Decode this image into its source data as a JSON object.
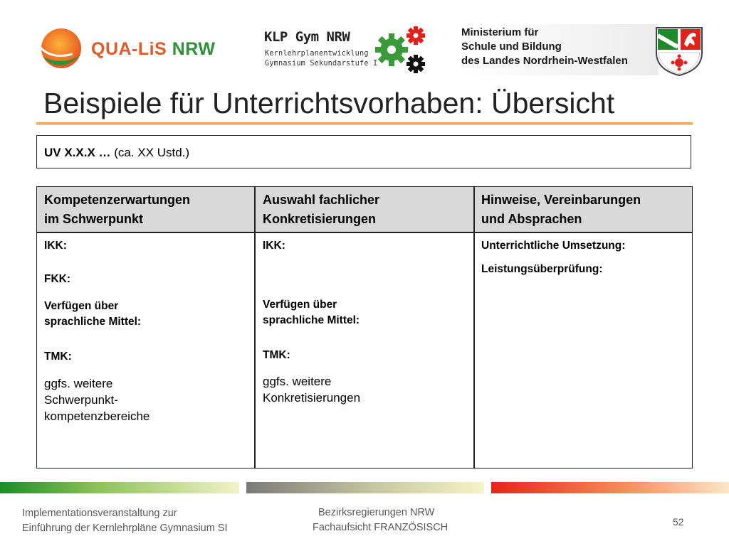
{
  "logos": {
    "qualis": {
      "part1": "QUA-LiS",
      "part2": "NRW"
    },
    "klp": {
      "title": "KLP Gym NRW",
      "sub1": "Kernlehrplanentwicklung",
      "sub2": "Gymnasium Sekundarstufe I"
    },
    "ministry": [
      "Ministerium für",
      "Schule und Bildung",
      "des Landes Nordrhein-Westfalen"
    ]
  },
  "title": "Beispiele für Unterrichtsvorhaben: Übersicht",
  "uv": {
    "bold": "UV X.X.X …",
    "rest": " (ca. XX Ustd.)"
  },
  "table": {
    "headers": [
      [
        "Kompetenzerwartungen",
        "im Schwerpunkt"
      ],
      [
        "Auswahl fachlicher",
        "Konkretisierungen"
      ],
      [
        "Hinweise, Vereinbarungen",
        "und Absprachen"
      ]
    ],
    "col1": {
      "ikk": "IKK:",
      "fkk": "FKK:",
      "verf1": "Verfügen über",
      "verf2": "sprachliche Mittel:",
      "tmk": "TMK:",
      "ggfs1": "ggfs. weitere",
      "ggfs2": "Schwerpunkt-",
      "ggfs3": "kompetenzbereiche"
    },
    "col2": {
      "ikk": "IKK:",
      "verf1": "Verfügen über",
      "verf2": "sprachliche Mittel:",
      "tmk": "TMK:",
      "ggfs1": "ggfs. weitere",
      "ggfs2": "Konkretisierungen"
    },
    "col3": {
      "umsetzung": "Unterrichtliche Umsetzung:",
      "pruefung": "Leistungsüberprüfung:"
    }
  },
  "footer": {
    "left1": "Implementationsveranstaltung zur",
    "left2": "Einführung der Kernlehrpläne Gymnasium SI",
    "center1": "Bezirksregierungen NRW",
    "center2": "Fachaufsicht FRANZÖSISCH",
    "page": "52"
  },
  "colors": {
    "accent_orange": "#e69a5a",
    "header_gray": "#d9d9d9",
    "nrw_green": "#2f8f3a",
    "nrw_red": "#e8231e"
  },
  "icons": [
    "qualis-logo-icon",
    "gears-icon",
    "nrw-crest-icon"
  ]
}
